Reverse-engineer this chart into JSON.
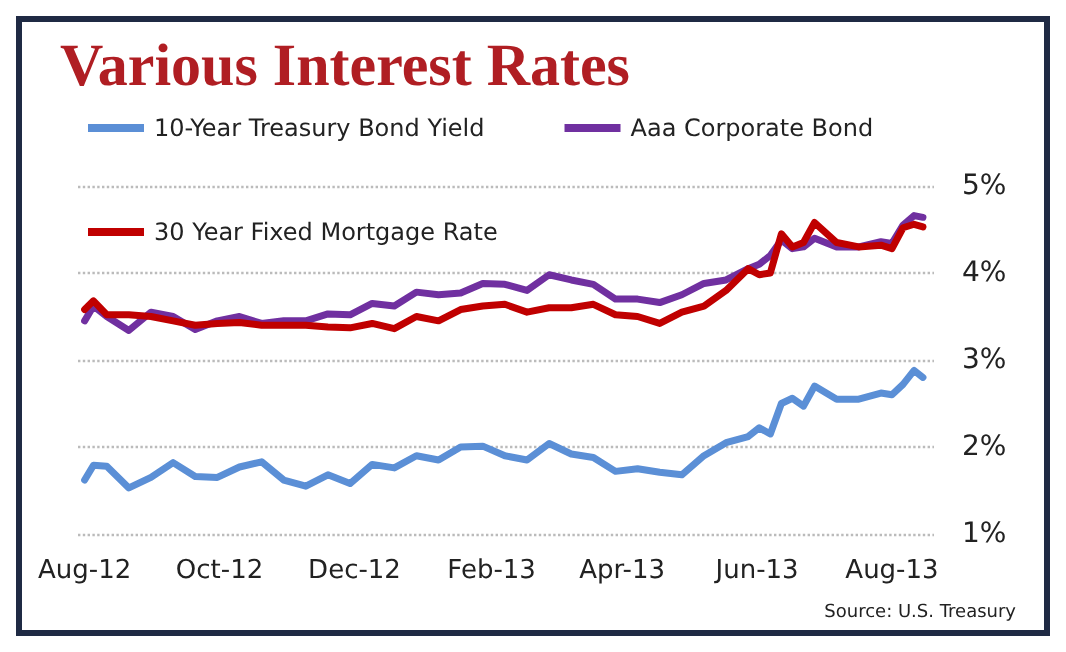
{
  "chart_data": {
    "type": "line",
    "title": "Various Interest Rates",
    "annotations": [
      "Source: U.S. Treasury"
    ],
    "x": [
      "2012-08-01",
      "2012-08-05",
      "2012-08-11",
      "2012-08-21",
      "2012-08-31",
      "2012-09-10",
      "2012-09-20",
      "2012-09-30",
      "2012-10-10",
      "2012-10-20",
      "2012-10-30",
      "2012-11-09",
      "2012-11-19",
      "2012-11-29",
      "2012-12-09",
      "2012-12-19",
      "2012-12-29",
      "2013-01-08",
      "2013-01-18",
      "2013-01-28",
      "2013-02-07",
      "2013-02-17",
      "2013-02-27",
      "2013-03-09",
      "2013-03-19",
      "2013-03-29",
      "2013-04-08",
      "2013-04-18",
      "2013-04-28",
      "2013-05-08",
      "2013-05-18",
      "2013-05-28",
      "2013-06-02",
      "2013-06-07",
      "2013-06-12",
      "2013-06-17",
      "2013-06-22",
      "2013-06-27",
      "2013-07-07",
      "2013-07-17",
      "2013-07-27",
      "2013-08-01",
      "2013-08-06",
      "2013-08-11",
      "2013-08-15"
    ],
    "series": [
      {
        "name": "10-Year Treasury Bond Yield",
        "color": "#5b8fd6",
        "values": [
          1.62,
          1.79,
          1.78,
          1.53,
          1.65,
          1.82,
          1.66,
          1.65,
          1.77,
          1.83,
          1.62,
          1.55,
          1.68,
          1.58,
          1.8,
          1.76,
          1.9,
          1.85,
          2.0,
          2.01,
          1.9,
          1.85,
          2.04,
          1.92,
          1.88,
          1.72,
          1.75,
          1.71,
          1.68,
          1.9,
          2.05,
          2.12,
          2.22,
          2.15,
          2.5,
          2.56,
          2.47,
          2.7,
          2.55,
          2.55,
          2.62,
          2.6,
          2.72,
          2.88,
          2.8
        ]
      },
      {
        "name": "Aaa Corporate Bond",
        "color": "#7030a0",
        "values": [
          3.45,
          3.62,
          3.5,
          3.34,
          3.55,
          3.5,
          3.35,
          3.45,
          3.5,
          3.42,
          3.45,
          3.45,
          3.53,
          3.52,
          3.65,
          3.62,
          3.78,
          3.75,
          3.77,
          3.88,
          3.87,
          3.8,
          3.98,
          3.92,
          3.87,
          3.7,
          3.7,
          3.66,
          3.75,
          3.88,
          3.92,
          4.05,
          4.1,
          4.2,
          4.38,
          4.28,
          4.3,
          4.4,
          4.3,
          4.3,
          4.36,
          4.34,
          4.55,
          4.66,
          4.64
        ]
      },
      {
        "name": "30 Year Fixed Mortgage Rate",
        "color": "#c00000",
        "values": [
          3.58,
          3.68,
          3.52,
          3.52,
          3.5,
          3.45,
          3.4,
          3.42,
          3.43,
          3.4,
          3.4,
          3.4,
          3.38,
          3.37,
          3.42,
          3.36,
          3.5,
          3.45,
          3.58,
          3.62,
          3.64,
          3.55,
          3.6,
          3.6,
          3.64,
          3.52,
          3.5,
          3.42,
          3.55,
          3.62,
          3.8,
          4.05,
          3.98,
          4.0,
          4.45,
          4.3,
          4.35,
          4.58,
          4.35,
          4.3,
          4.32,
          4.28,
          4.52,
          4.56,
          4.53
        ]
      }
    ],
    "xlim": [
      "2012-07-29",
      "2013-08-20"
    ],
    "xticks": [
      {
        "value": "2012-08-01",
        "label": "Aug-12"
      },
      {
        "value": "2012-10-01",
        "label": "Oct-12"
      },
      {
        "value": "2012-12-01",
        "label": "Dec-12"
      },
      {
        "value": "2013-02-01",
        "label": "Feb-13"
      },
      {
        "value": "2013-04-01",
        "label": "Apr-13"
      },
      {
        "value": "2013-06-01",
        "label": "Jun-13"
      },
      {
        "value": "2013-08-01",
        "label": "Aug-13"
      }
    ],
    "ylim": [
      1,
      5
    ],
    "yticks": [
      {
        "value": 1,
        "label": "1%"
      },
      {
        "value": 2,
        "label": "2%"
      },
      {
        "value": 3,
        "label": "3%"
      },
      {
        "value": 4,
        "label": "4%"
      },
      {
        "value": 5,
        "label": "5%"
      }
    ],
    "grid": "y",
    "legend": "top left",
    "marker": "none",
    "line_style": "solid"
  }
}
